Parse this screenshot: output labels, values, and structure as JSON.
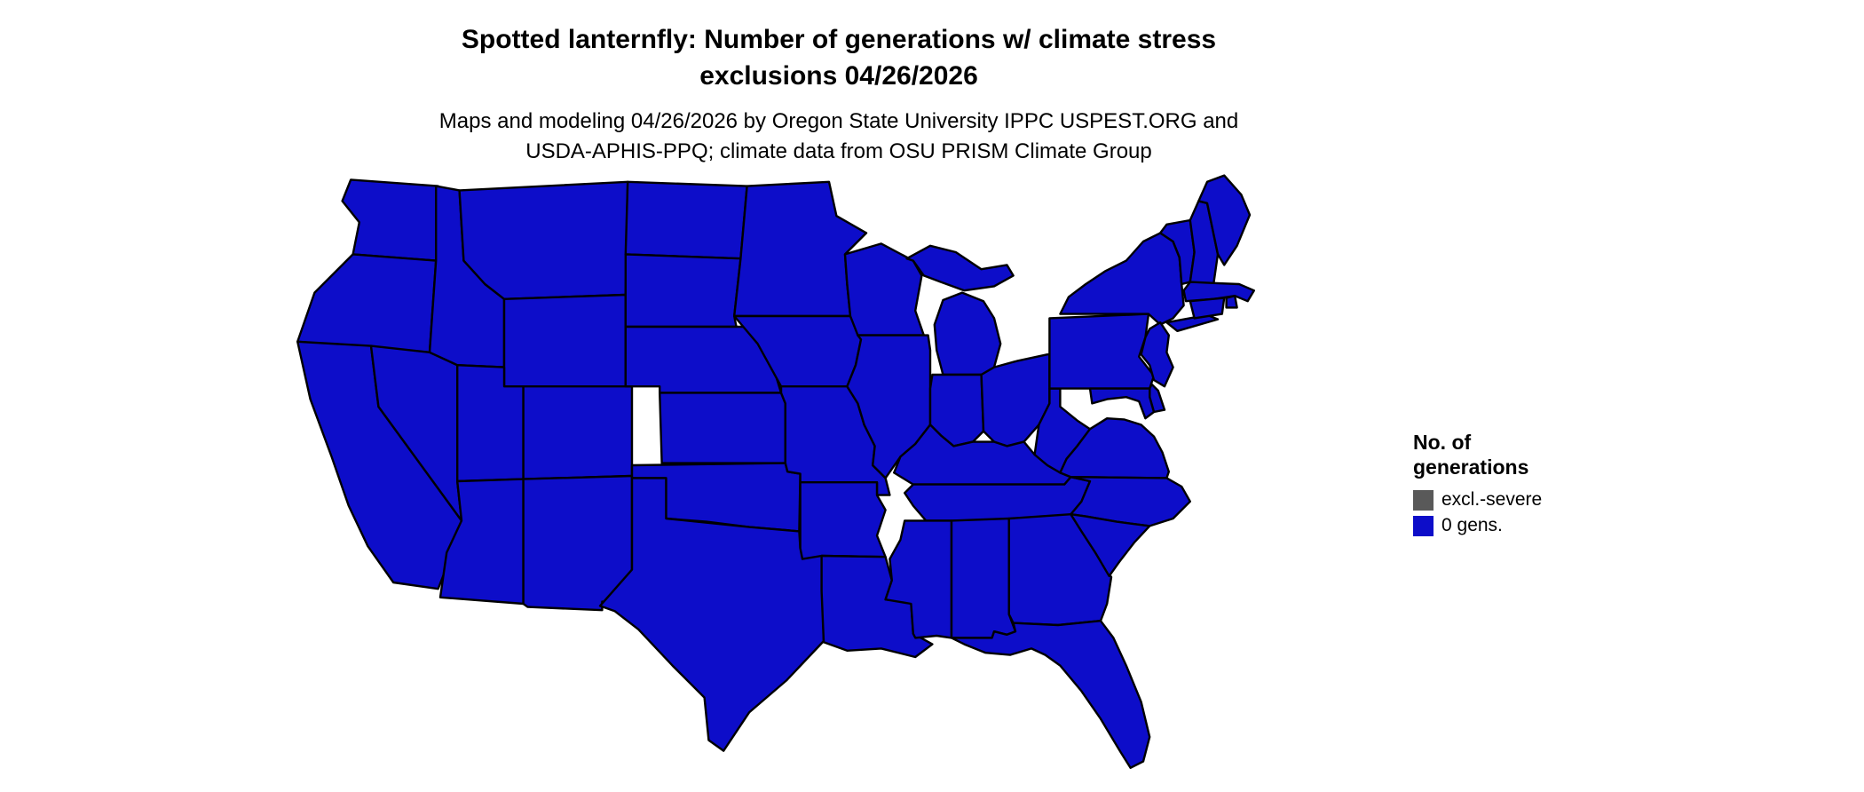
{
  "title": {
    "line1": "Spotted lanternfly: Number of generations w/ climate stress",
    "line2": "exclusions 04/26/2026"
  },
  "subtitle": {
    "line1": "Maps and modeling 04/26/2026 by Oregon State University IPPC USPEST.ORG and",
    "line2": "USDA-APHIS-PPQ; climate data from OSU PRISM Climate Group"
  },
  "legend": {
    "title_line1": "No. of",
    "title_line2": "generations",
    "items": [
      {
        "label": "excl.-severe",
        "color": "#595959"
      },
      {
        "label": "0 gens.",
        "color": "#0D0DC9"
      }
    ]
  },
  "map": {
    "border_color": "#000000",
    "background": "#ffffff"
  },
  "chart_data": {
    "type": "choropleth",
    "title": "Spotted lanternfly: Number of generations w/ climate stress exclusions 04/26/2026",
    "subtitle": "Maps and modeling 04/26/2026 by Oregon State University IPPC USPEST.ORG and USDA-APHIS-PPQ; climate data from OSU PRISM Climate Group",
    "region": "Contiguous United States",
    "date": "04/26/2026",
    "legend_title": "No. of generations",
    "legend_position": "right",
    "classes": [
      {
        "label": "excl.-severe",
        "color": "#595959"
      },
      {
        "label": "0 gens.",
        "color": "#0D0DC9"
      }
    ],
    "state_values": {
      "WA": "0 gens.",
      "OR": "0 gens.",
      "CA": "0 gens.",
      "NV": "0 gens.",
      "ID": "0 gens.",
      "MT": "0 gens.",
      "WY": "0 gens.",
      "UT": "0 gens.",
      "CO": "0 gens.",
      "AZ": "0 gens.",
      "NM": "0 gens.",
      "ND": "0 gens.",
      "SD": "0 gens.",
      "NE": "0 gens.",
      "KS": "0 gens.",
      "OK": "0 gens.",
      "TX": "0 gens.",
      "MN": "0 gens.",
      "IA": "0 gens.",
      "MO": "0 gens.",
      "AR": "0 gens.",
      "LA": "0 gens.",
      "WI": "0 gens.",
      "IL": "0 gens.",
      "MI": "0 gens.",
      "IN": "0 gens.",
      "OH": "0 gens.",
      "KY": "0 gens.",
      "TN": "0 gens.",
      "MS": "0 gens.",
      "AL": "0 gens.",
      "GA": "0 gens.",
      "FL": "0 gens.",
      "WV": "0 gens.",
      "VA": "0 gens.",
      "NC": "0 gens.",
      "SC": "0 gens.",
      "PA": "0 gens.",
      "NY": "0 gens.",
      "VT": "0 gens.",
      "NH": "0 gens.",
      "ME": "0 gens.",
      "MA": "0 gens.",
      "RI": "0 gens.",
      "CT": "0 gens.",
      "NJ": "0 gens.",
      "DE": "0 gens.",
      "MD": "0 gens."
    }
  }
}
